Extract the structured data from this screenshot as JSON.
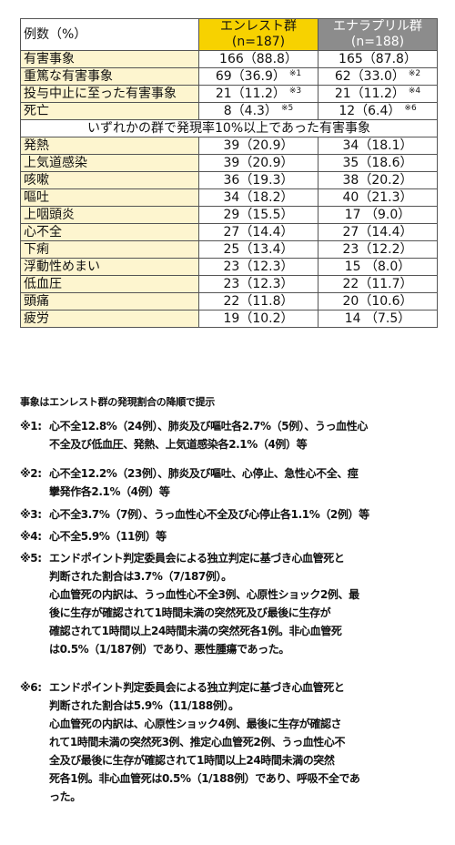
{
  "table": {
    "header": {
      "label": "例数（%）",
      "group1": [
        "エンレスト群",
        "(n=187)"
      ],
      "group2": [
        "エナラプリル群",
        "(n=188)"
      ]
    },
    "summary_rows": [
      {
        "label": "有害事象",
        "v1": "166（88.8）",
        "v1_note": "",
        "v2": "165（87.8）",
        "v2_note": ""
      },
      {
        "label": "重篤な有害事象",
        "v1": "69（36.9）",
        "v1_note": "※1",
        "v2": "62（33.0）",
        "v2_note": "※2"
      },
      {
        "label": "投与中止に至った有害事象",
        "v1": "21（11.2）",
        "v1_note": "※3",
        "v2": "21（11.2）",
        "v2_note": "※4"
      },
      {
        "label": "死亡",
        "v1": "8（4.3）",
        "v1_note": "※5",
        "v2": "12（6.4）",
        "v2_note": "※6"
      }
    ],
    "section_title": "いずれかの群で発現率10%以上であった有害事象",
    "event_rows": [
      {
        "label": "発熱",
        "v1": "39（20.9）",
        "v2": "34（18.1）"
      },
      {
        "label": "上気道感染",
        "v1": "39（20.9）",
        "v2": "35（18.6）"
      },
      {
        "label": "咳嗽",
        "v1": "36（19.3）",
        "v2": "38（20.2）"
      },
      {
        "label": "嘔吐",
        "v1": "34（18.2）",
        "v2": "40（21.3）"
      },
      {
        "label": "上咽頭炎",
        "v1": "29（15.5）",
        "v2": "17 （9.0）"
      },
      {
        "label": "心不全",
        "v1": "27（14.4）",
        "v2": "27（14.4）"
      },
      {
        "label": "下痢",
        "v1": "25（13.4）",
        "v2": "23（12.2）"
      },
      {
        "label": "浮動性めまい",
        "v1": "23（12.3）",
        "v2": "15 （8.0）"
      },
      {
        "label": "低血圧",
        "v1": "23（12.3）",
        "v2": "22（11.7）"
      },
      {
        "label": "頭痛",
        "v1": "22（11.8）",
        "v2": "20（10.6）"
      },
      {
        "label": "疲労",
        "v1": "19（10.2）",
        "v2": "14 （7.5）"
      }
    ]
  },
  "note": "事象はエンレスト群の発現割合の降順で提示",
  "footnotes": [
    {
      "mark": "※1:",
      "lines": [
        "心不全12.8%（24例）、肺炎及び嘔吐各2.7%（5例）、うっ血性心",
        "不全及び低血圧、発熱、上気道感染各2.1%（4例）等"
      ]
    },
    {
      "mark": "※2:",
      "lines": [
        "心不全12.2%（23例）、肺炎及び嘔吐、心停止、急性心不全、痙",
        "攣発作各2.1%（4例）等"
      ]
    },
    {
      "mark": "※3:",
      "lines": [
        "心不全3.7%（7例）、うっ血性心不全及び心停止各1.1%（2例）等"
      ]
    },
    {
      "mark": "※4:",
      "lines": [
        "心不全5.9%（11例）等"
      ]
    },
    {
      "mark": "※5:",
      "lines": [
        "エンドポイント判定委員会による独立判定に基づき心血管死と",
        "判断された割合は3.7%（7/187例）。",
        "心血管死の内訳は、うっ血性心不全3例、心原性ショック2例、最",
        "後に生存が確認されて1時間未満の突然死及び最後に生存が",
        "確認されて1時間以上24時間未満の突然死各1例。非心血管死",
        "は0.5%（1/187例）であり、悪性腫瘍であった。"
      ]
    },
    {
      "mark": "※6:",
      "lines": [
        "エンドポイント判定委員会による独立判定に基づき心血管死と",
        "判断された割合は5.9%（11/188例）。",
        "心血管死の内訳は、心原性ショック4例、最後に生存が確認さ",
        "れて1時間未満の突然死3例、推定心血管死2例、うっ血性心不",
        "全及び最後に生存が確認されて1時間以上24時間未満の突然",
        "死各1例。非心血管死は0.5%（1/188例）であり、呼吸不全であ",
        "った。"
      ]
    }
  ]
}
